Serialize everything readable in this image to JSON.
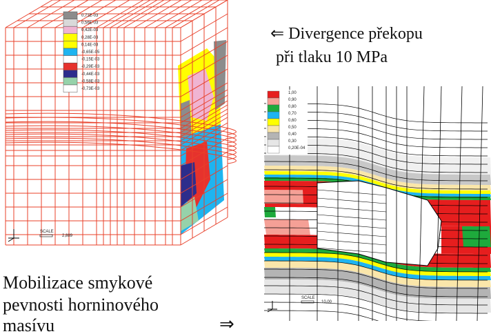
{
  "caption_top": [
    "⇐ Divergence překopu",
    "při tlaku 10 MPa"
  ],
  "caption_bottom": [
    "Mobilizace smykové",
    "pevnosti horninového",
    "masívu"
  ],
  "arrow_bottom": "⇒",
  "left_figure": {
    "legend": [
      {
        "label": "0,71E-03",
        "color": "#8c8c8c"
      },
      {
        "label": "0,56E-03",
        "color": "#d9d9d9"
      },
      {
        "label": "0,42E-03",
        "color": "#f0b4d2"
      },
      {
        "label": "0,28E-03",
        "color": "#ffff00"
      },
      {
        "label": "0,14E-03",
        "color": "#ffff00"
      },
      {
        "label": "-0,65E-05",
        "color": "#1eb4f0"
      },
      {
        "label": "-0,15E-03",
        "color": "#ffffff"
      },
      {
        "label": "-0,29E-03",
        "color": "#e6322d"
      },
      {
        "label": "-0,44E-03",
        "color": "#2d2d8c"
      },
      {
        "label": "-0,58E-03",
        "color": "#96d2aa"
      },
      {
        "label": "-0,73E-03",
        "color": "#ffffff"
      }
    ],
    "scale_label": "SCALE",
    "scale_value": "2,889"
  },
  "right_figure": {
    "legend": [
      {
        "label": "1,00",
        "color": "#e61e1e"
      },
      {
        "label": "0,90",
        "color": "#f5a096"
      },
      {
        "label": "0,80",
        "color": "#1eaa3c"
      },
      {
        "label": "0,70",
        "color": "#1eb4f0"
      },
      {
        "label": "0,60",
        "color": "#ffff00"
      },
      {
        "label": "0,50",
        "color": "#fae6aa"
      },
      {
        "label": "0,40",
        "color": "#b4b4b4"
      },
      {
        "label": "0,30",
        "color": "#e6e6e6"
      },
      {
        "label": "0,20E-04",
        "color": "#ffffff"
      }
    ],
    "scale_label": "SCALE",
    "scale_value": "10,00"
  }
}
